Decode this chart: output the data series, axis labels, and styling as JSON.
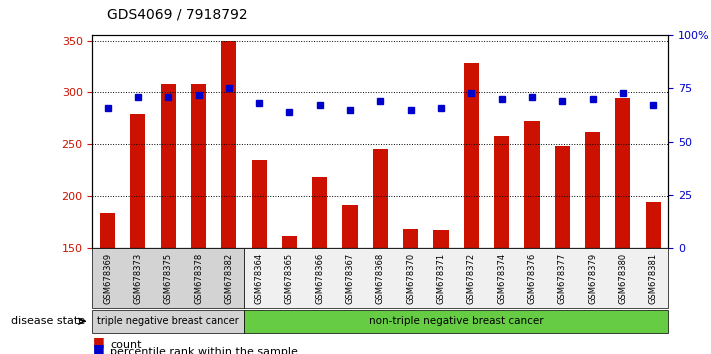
{
  "title": "GDS4069 / 7918792",
  "samples": [
    "GSM678369",
    "GSM678373",
    "GSM678375",
    "GSM678378",
    "GSM678382",
    "GSM678364",
    "GSM678365",
    "GSM678366",
    "GSM678367",
    "GSM678368",
    "GSM678370",
    "GSM678371",
    "GSM678372",
    "GSM678374",
    "GSM678376",
    "GSM678377",
    "GSM678379",
    "GSM678380",
    "GSM678381"
  ],
  "counts": [
    184,
    279,
    308,
    308,
    350,
    235,
    161,
    218,
    191,
    245,
    168,
    167,
    328,
    258,
    272,
    248,
    262,
    295,
    194
  ],
  "percentile_ranks": [
    66,
    71,
    71,
    72,
    75,
    68,
    64,
    67,
    65,
    69,
    65,
    66,
    73,
    70,
    71,
    69,
    70,
    73,
    67
  ],
  "ylim_left": [
    150,
    355
  ],
  "ylim_right": [
    0,
    100
  ],
  "yticks_left": [
    150,
    200,
    250,
    300,
    350
  ],
  "yticks_right": [
    0,
    25,
    50,
    75,
    100
  ],
  "ytick_labels_right": [
    "0",
    "25",
    "50",
    "75",
    "100%"
  ],
  "bar_color": "#cc1100",
  "dot_color": "#0000cc",
  "n_triple_neg": 5,
  "label_triple": "triple negative breast cancer",
  "label_non_triple": "non-triple negative breast cancer",
  "legend_count": "count",
  "legend_percentile": "percentile rank within the sample",
  "disease_state_label": "disease state",
  "group1_bg": "#d3d3d3",
  "group2_bg": "#66cc44"
}
